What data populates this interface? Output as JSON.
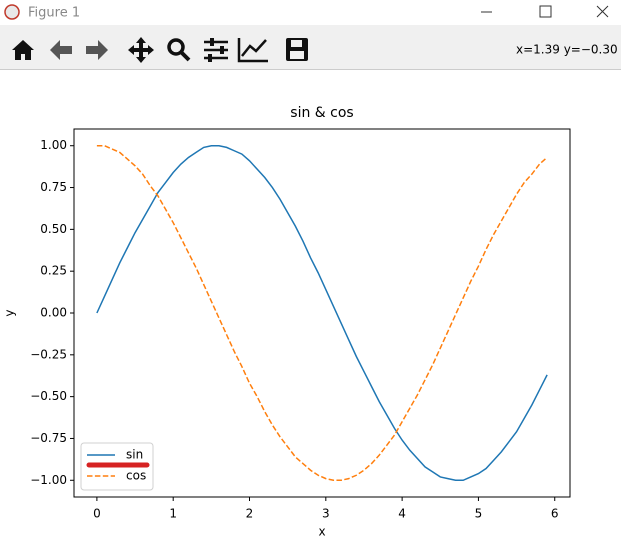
{
  "window": {
    "title": "Figure 1",
    "status": "x=1.39 y=−0.30"
  },
  "chart_data": {
    "type": "line",
    "title": "sin & cos",
    "x_label": "x",
    "y_label": "y",
    "x": [
      0,
      0.1,
      0.2,
      0.3,
      0.4,
      0.5,
      0.6,
      0.7,
      0.8,
      0.9,
      1,
      1.1,
      1.2,
      1.3,
      1.4,
      1.5,
      1.6,
      1.7,
      1.8,
      1.9,
      2,
      2.1,
      2.2,
      2.3,
      2.4,
      2.5,
      2.6,
      2.7,
      2.8,
      2.9,
      3,
      3.1,
      3.2,
      3.3,
      3.4,
      3.5,
      3.6,
      3.7,
      3.8,
      3.9,
      4,
      4.1,
      4.2,
      4.3,
      4.4,
      4.5,
      4.6,
      4.7,
      4.8,
      4.9,
      5,
      5.1,
      5.2,
      5.3,
      5.4,
      5.5,
      5.6,
      5.7,
      5.8,
      5.9
    ],
    "series": [
      {
        "name": "sin",
        "color": "#1f77b4",
        "linestyle": "solid",
        "values": [
          0,
          0.1,
          0.2,
          0.3,
          0.39,
          0.48,
          0.56,
          0.64,
          0.72,
          0.78,
          0.84,
          0.89,
          0.93,
          0.96,
          0.99,
          1.0,
          1.0,
          0.99,
          0.97,
          0.95,
          0.91,
          0.86,
          0.81,
          0.75,
          0.68,
          0.6,
          0.52,
          0.43,
          0.33,
          0.24,
          0.14,
          0.04,
          -0.06,
          -0.16,
          -0.26,
          -0.35,
          -0.44,
          -0.53,
          -0.61,
          -0.69,
          -0.76,
          -0.82,
          -0.87,
          -0.92,
          -0.95,
          -0.98,
          -0.99,
          -1.0,
          -1.0,
          -0.98,
          -0.96,
          -0.93,
          -0.88,
          -0.83,
          -0.77,
          -0.71,
          -0.63,
          -0.55,
          -0.46,
          -0.37
        ]
      },
      {
        "name": "cos",
        "color": "#ff7f0e",
        "linestyle": "dashed",
        "values": [
          1,
          1.0,
          0.98,
          0.96,
          0.92,
          0.88,
          0.83,
          0.76,
          0.7,
          0.62,
          0.54,
          0.45,
          0.36,
          0.27,
          0.17,
          0.07,
          -0.03,
          -0.13,
          -0.23,
          -0.32,
          -0.42,
          -0.5,
          -0.59,
          -0.67,
          -0.74,
          -0.8,
          -0.86,
          -0.9,
          -0.94,
          -0.97,
          -0.99,
          -1.0,
          -1.0,
          -0.99,
          -0.97,
          -0.94,
          -0.9,
          -0.85,
          -0.79,
          -0.73,
          -0.65,
          -0.57,
          -0.49,
          -0.4,
          -0.31,
          -0.21,
          -0.11,
          -0.01,
          0.09,
          0.19,
          0.28,
          0.38,
          0.47,
          0.55,
          0.63,
          0.71,
          0.78,
          0.83,
          0.89,
          0.93
        ]
      }
    ],
    "xlim": [
      -0.3,
      6.2
    ],
    "ylim": [
      -1.1,
      1.1
    ],
    "xticks": [
      0,
      1,
      2,
      3,
      4,
      5,
      6
    ],
    "yticks": [
      {
        "value": 1,
        "label": "1.00"
      },
      {
        "value": 0.75,
        "label": "0.75"
      },
      {
        "value": 0.5,
        "label": "0.50"
      },
      {
        "value": 0.25,
        "label": "0.25"
      },
      {
        "value": 0,
        "label": "0.00"
      },
      {
        "value": -0.25,
        "label": "−0.25"
      },
      {
        "value": -0.5,
        "label": "−0.50"
      },
      {
        "value": -0.75,
        "label": "−0.75"
      },
      {
        "value": -1,
        "label": "−1.00"
      }
    ],
    "legend": "lower left"
  }
}
